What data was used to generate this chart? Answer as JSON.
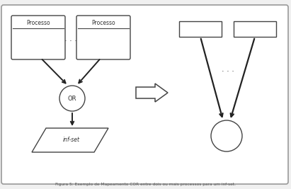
{
  "bg_color": "#f0f0f0",
  "border_color": "#999999",
  "shape_color": "#ffffff",
  "shape_edge_color": "#444444",
  "arrow_color": "#222222",
  "text_color": "#333333",
  "title": "Figura 5: Exemplo de Mapeamento COR entre dois ou mais processos para um inf-set.",
  "figw": 4.11,
  "figh": 2.67,
  "dpi": 100
}
